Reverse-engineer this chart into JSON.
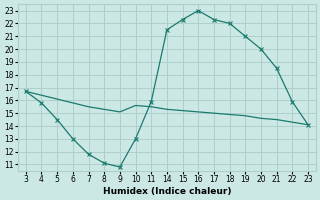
{
  "xtick_labels": [
    "3",
    "4",
    "5",
    "6",
    "7",
    "8",
    "9",
    "10",
    "11",
    "14",
    "15",
    "16",
    "17",
    "18",
    "19",
    "20",
    "21",
    "22",
    "23"
  ],
  "curve1_xi": [
    0,
    1,
    2,
    3,
    4,
    5,
    6,
    7,
    8,
    9,
    10,
    11,
    12,
    13,
    14,
    15,
    16,
    17,
    18
  ],
  "curve1_y": [
    16.7,
    15.8,
    14.5,
    13.0,
    11.8,
    11.1,
    10.8,
    13.0,
    15.9,
    21.5,
    22.3,
    23.0,
    22.3,
    22.0,
    21.0,
    20.0,
    18.5,
    15.9,
    14.1
  ],
  "curve2_xi": [
    0,
    1,
    2,
    3,
    4,
    5,
    6,
    7,
    8,
    9,
    10,
    11,
    12,
    13,
    14,
    15,
    16,
    17,
    18
  ],
  "curve2_y": [
    16.7,
    16.4,
    16.1,
    15.8,
    15.5,
    15.3,
    15.1,
    15.6,
    15.5,
    15.3,
    15.2,
    15.1,
    15.0,
    14.9,
    14.8,
    14.6,
    14.5,
    14.3,
    14.1
  ],
  "line_color": "#1a7a6e",
  "bg_color": "#cce8e5",
  "grid_color": "#aecfcc",
  "xlabel": "Humidex (Indice chaleur)",
  "ylim": [
    10.5,
    23.5
  ],
  "yticks": [
    11,
    12,
    13,
    14,
    15,
    16,
    17,
    18,
    19,
    20,
    21,
    22,
    23
  ]
}
